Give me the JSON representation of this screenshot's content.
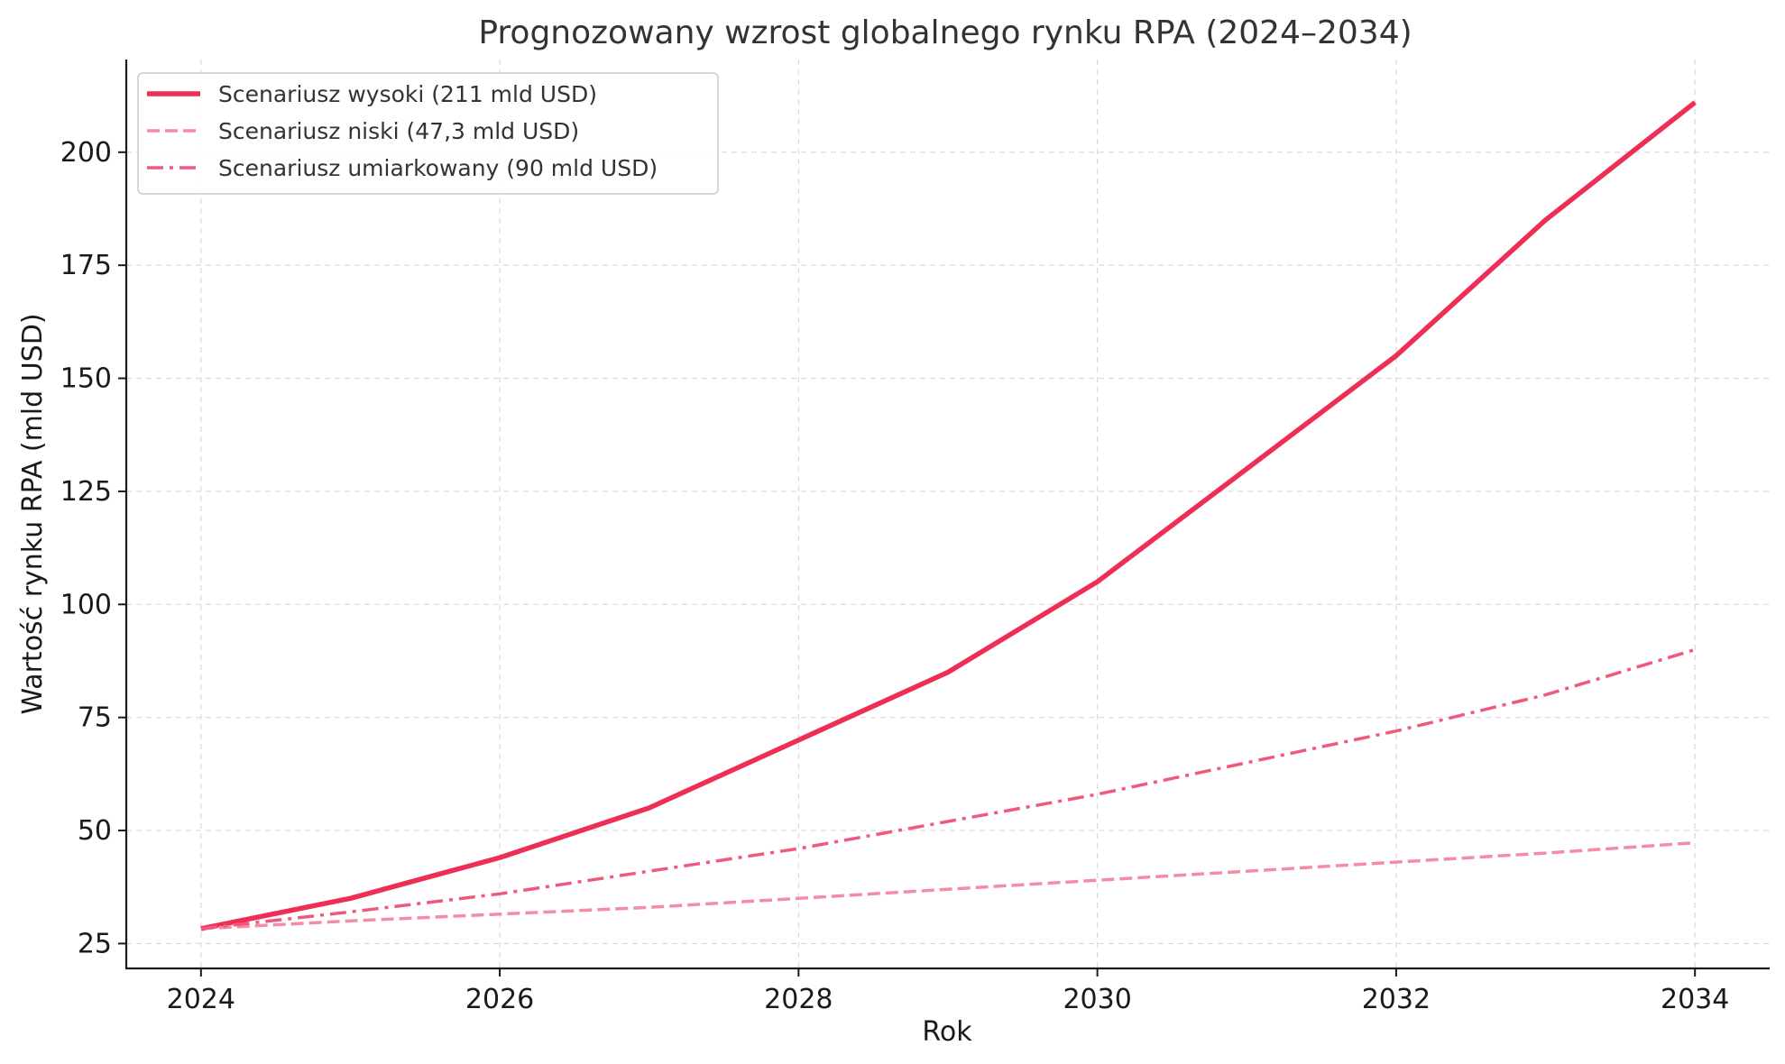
{
  "chart_data": {
    "type": "line",
    "title": "Prognozowany wzrost globalnego rynku RPA (2024–2034)",
    "xlabel": "Rok",
    "ylabel": "Wartość rynku RPA (mld USD)",
    "x": [
      2024,
      2025,
      2026,
      2027,
      2028,
      2029,
      2030,
      2031,
      2032,
      2033,
      2034
    ],
    "xlim": [
      2023.5,
      2034.5
    ],
    "ylim": [
      19.5,
      220.5
    ],
    "x_ticks": [
      2024,
      2026,
      2028,
      2030,
      2032,
      2034
    ],
    "y_ticks": [
      25,
      50,
      75,
      100,
      125,
      150,
      175,
      200
    ],
    "grid": true,
    "legend_position": "top-left",
    "series": [
      {
        "name": "Scenariusz wysoki (211 mld USD)",
        "style": "solid",
        "color": "#ee2e55",
        "values": [
          28.3,
          35,
          44,
          55,
          70,
          85,
          105,
          130,
          155,
          185,
          211
        ]
      },
      {
        "name": "Scenariusz niski (47,3 mld USD)",
        "style": "dashed",
        "color": "#f48ca3",
        "values": [
          28.3,
          30,
          31.5,
          33,
          35,
          37,
          39,
          41,
          43,
          45,
          47.3
        ]
      },
      {
        "name": "Scenariusz umiarkowany (90 mld USD)",
        "style": "dashdot",
        "color": "#ef5a7c",
        "values": [
          28.3,
          32,
          36,
          41,
          46,
          52,
          58,
          65,
          72,
          80,
          90
        ]
      }
    ]
  }
}
